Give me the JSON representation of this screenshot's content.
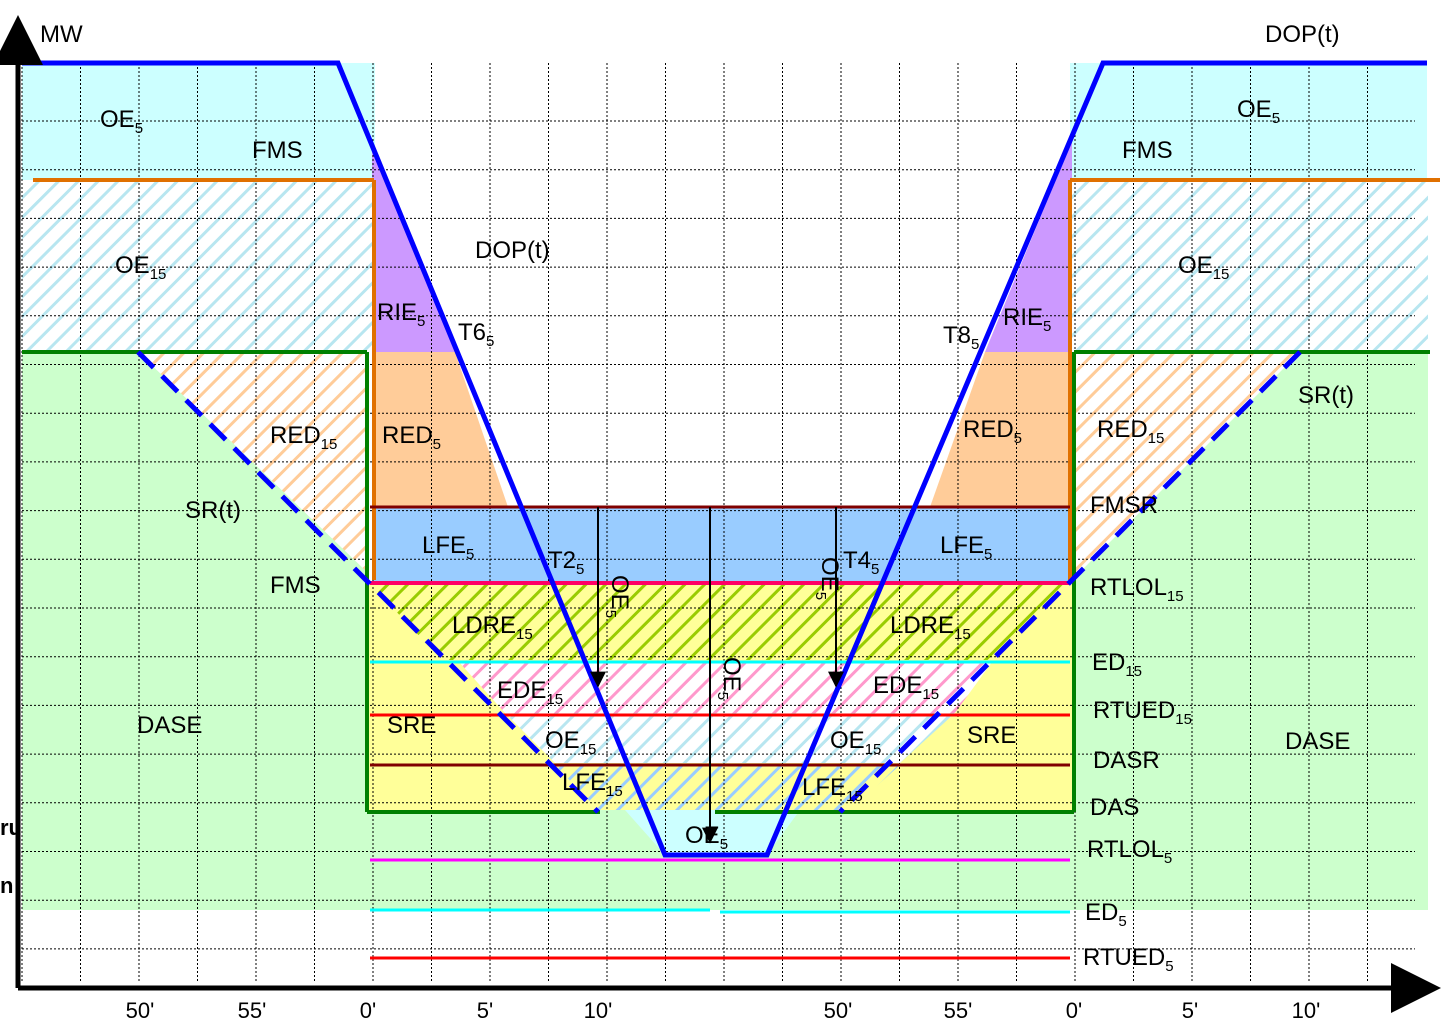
{
  "colors": {
    "oe5_fill": "#ccffff",
    "oe15_hatch": "#b8e6f0",
    "green_area": "#ccffcc",
    "purple_rie": "#cc99ff",
    "orange_red": "#ffcc99",
    "blue_lfe": "#99ccff",
    "yellow_sre": "#ffff99",
    "ldre_hatch": "#99cc00",
    "ede_hatch": "#ff99cc",
    "red15_hatch": "#ffcc99",
    "dop_line": "#0000ff",
    "orange_line": "#e07000",
    "green_line": "#008000",
    "dark_red_line": "#800000",
    "magenta_line": "#ff00ff",
    "pink_line": "#ff0066",
    "cyan_line": "#00ffff",
    "red_line": "#ff0000"
  },
  "axis": {
    "y_label": "MW",
    "x_ticks": [
      "50'",
      "55'",
      "0'",
      "5'",
      "10'",
      "50'",
      "55'",
      "0'",
      "5'",
      "10'"
    ]
  },
  "labels": {
    "dop_right": "DOP(t)",
    "oe5_left": {
      "base": "OE",
      "sub": "5"
    },
    "fms_left": "FMS",
    "oe5_right": {
      "base": "OE",
      "sub": "5"
    },
    "fms_right": "FMS",
    "oe15_left": {
      "base": "OE",
      "sub": "15"
    },
    "dop_mid": "DOP(t)",
    "oe15_right": {
      "base": "OE",
      "sub": "15"
    },
    "rie5_left": {
      "base": "RIE",
      "sub": "5"
    },
    "t6": {
      "base": "T6",
      "sub": "5"
    },
    "t8": {
      "base": "T8",
      "sub": "5"
    },
    "rie5_right": {
      "base": "RIE",
      "sub": "5"
    },
    "sr_right": "SR(t)",
    "red15_left": {
      "base": "RED",
      "sub": "15"
    },
    "red5_left": {
      "base": "RED",
      "sub": "5"
    },
    "red5_right": {
      "base": "RED",
      "sub": "5"
    },
    "red15_right": {
      "base": "RED",
      "sub": "15"
    },
    "sr_left": "SR(t)",
    "fmsr": "FMSR",
    "lfe5_left": {
      "base": "LFE",
      "sub": "5"
    },
    "t2": {
      "base": "T2",
      "sub": "5"
    },
    "t4": {
      "base": "T4",
      "sub": "5"
    },
    "lfe5_right": {
      "base": "LFE",
      "sub": "5"
    },
    "fms_low": "FMS",
    "rtlol15": {
      "base": "RTLOL",
      "sub": "15"
    },
    "ldre15_left": {
      "base": "LDRE",
      "sub": "15"
    },
    "ldre15_right": {
      "base": "LDRE",
      "sub": "15"
    },
    "ed15": {
      "base": "ED",
      "sub": "15"
    },
    "ede15_left": {
      "base": "EDE",
      "sub": "15"
    },
    "ede15_right": {
      "base": "EDE",
      "sub": "15"
    },
    "rtued15": {
      "base": "RTUED",
      "sub": "15"
    },
    "dase_left": "DASE",
    "sre_left": "SRE",
    "oe15_low_left": {
      "base": "OE",
      "sub": "15"
    },
    "oe15_low_right": {
      "base": "OE",
      "sub": "15"
    },
    "sre_right": "SRE",
    "dase_right": "DASE",
    "dasr": "DASR",
    "lfe15_left": {
      "base": "LFE",
      "sub": "15"
    },
    "lfe15_right": {
      "base": "LFE",
      "sub": "15"
    },
    "das": "DAS",
    "oe5_bottom": {
      "base": "OE",
      "sub": "5"
    },
    "rtlol5": {
      "base": "RTLOL",
      "sub": "5"
    },
    "ed5": {
      "base": "ED",
      "sub": "5"
    },
    "rtued5": {
      "base": "RTUED",
      "sub": "5"
    },
    "oe5_arrow_1": {
      "base": "OE",
      "sub": "5"
    },
    "oe5_arrow_2": {
      "base": "OE",
      "sub": "5"
    },
    "oe5_arrow_3": {
      "base": "OE",
      "sub": "5"
    },
    "clipped_1": "ru",
    "clipped_2": "n"
  }
}
